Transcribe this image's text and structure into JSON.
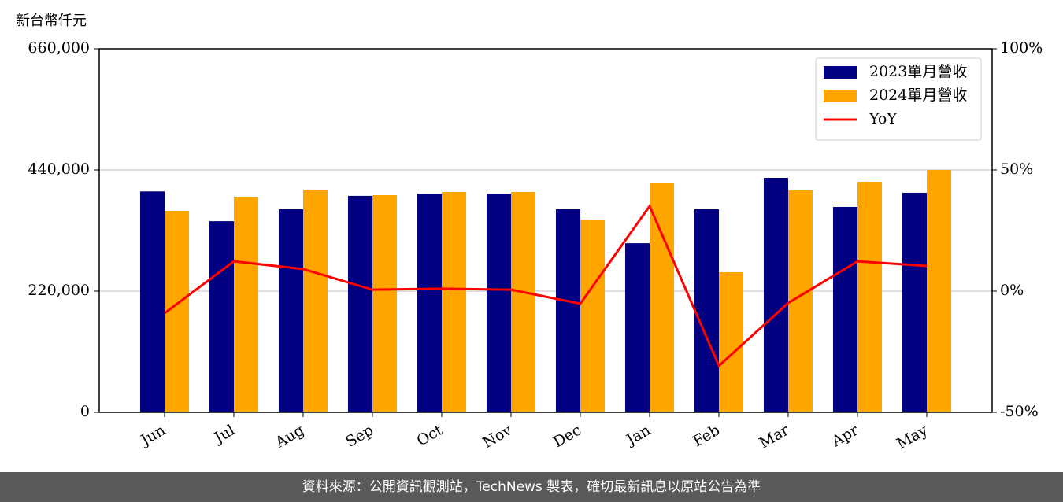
{
  "chart_data": {
    "type": "bar",
    "y_label": "新台幣仟元",
    "categories": [
      "Jun",
      "Jul",
      "Aug",
      "Sep",
      "Oct",
      "Nov",
      "Dec",
      "Jan",
      "Feb",
      "Mar",
      "Apr",
      "May"
    ],
    "series": [
      {
        "name": "2023單月營收",
        "color": "#000080",
        "type": "bar",
        "values": [
          401000,
          347000,
          368600,
          393000,
          397000,
          397000,
          368600,
          307000,
          368600,
          425700,
          372900,
          398600
        ]
      },
      {
        "name": "2024單月營收",
        "color": "#ffa500",
        "type": "bar",
        "values": [
          365700,
          390000,
          404300,
          394300,
          400000,
          400000,
          350000,
          417100,
          254300,
          402900,
          418600,
          440000
        ]
      },
      {
        "name": "YoY",
        "color": "#ff0000",
        "type": "line",
        "axis": "y2",
        "values": [
          -9.1,
          12.3,
          9.1,
          0.6,
          1.0,
          0.6,
          -5.2,
          35.1,
          -30.8,
          -4.9,
          12.3,
          10.4
        ]
      }
    ],
    "ylim": [
      0,
      660000
    ],
    "yticks": [
      0,
      {
        "value": 220000,
        "label": "220,000"
      },
      {
        "value": 440000,
        "label": "440,000"
      },
      {
        "value": 660000,
        "label": "660,000"
      }
    ],
    "y2lim": [
      -50,
      100
    ],
    "y2ticks": [
      {
        "value": -50,
        "label": "-50%"
      },
      {
        "value": 0,
        "label": "0%"
      },
      {
        "value": 50,
        "label": "50%"
      },
      {
        "value": 100,
        "label": "100%"
      }
    ],
    "grid": true,
    "legend": "upper right"
  },
  "footer": "資料來源：公開資訊觀測站，TechNews 製表，確切最新訊息以原站公告為準"
}
